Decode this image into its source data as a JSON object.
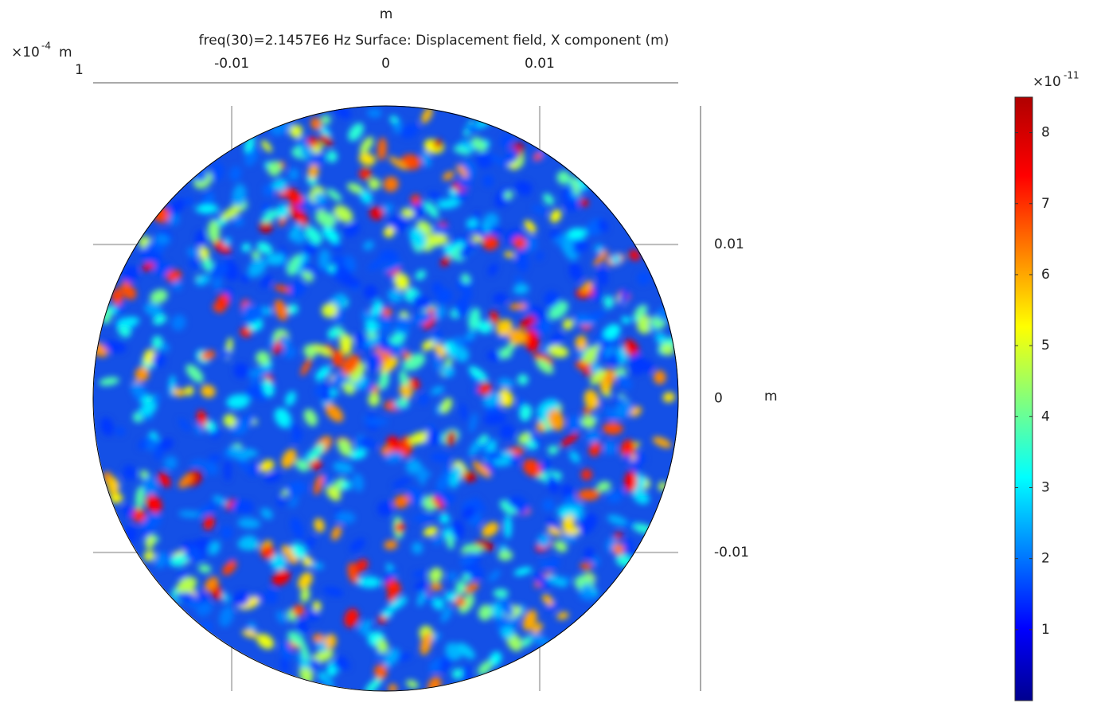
{
  "chart_data": {
    "type": "surface",
    "top_label": "m",
    "title": "freq(30)=2.1457E6 Hz   Surface: Displacement field, X component (m)",
    "corner_axis": {
      "prefix": "×10",
      "exponent": "-4",
      "unit": "m",
      "tick": "1"
    },
    "xlim": [
      -0.019,
      0.019
    ],
    "ylim": [
      -0.019,
      0.019
    ],
    "xticks": [
      -0.01,
      0,
      0.01
    ],
    "yticks": [
      0.01,
      0,
      -0.01
    ],
    "y_label": "m",
    "radius": 0.019,
    "colorbar": {
      "prefix": "×10",
      "exponent": "-11",
      "lim": [
        0,
        8.5
      ],
      "ticks": [
        1,
        2,
        3,
        4,
        5,
        6,
        7,
        8
      ]
    }
  }
}
